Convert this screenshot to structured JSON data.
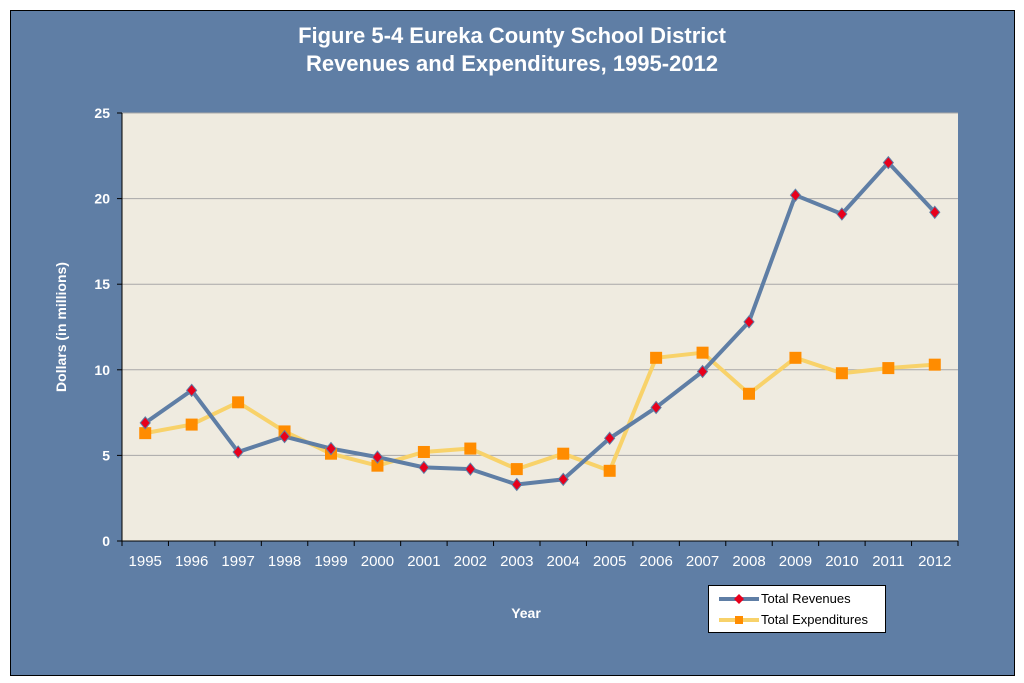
{
  "colors": {
    "background": "#5f7ea5",
    "plot_background": "#efebe0",
    "revenues_line": "#5f7ea5",
    "revenues_marker": "#e8001c",
    "expenditures_line": "#f8d26a",
    "expenditures_marker": "#ff8c00"
  },
  "chart_data": {
    "type": "line",
    "title": "Figure 5-4 Eureka County School District\nRevenues and Expenditures, 1995-2012",
    "title_lines": [
      "Figure 5-4 Eureka County School District",
      "Revenues and Expenditures, 1995-2012"
    ],
    "xlabel": "Year",
    "ylabel": "Dollars (in millions)",
    "ylim": [
      0,
      25
    ],
    "yticks": [
      0,
      5,
      10,
      15,
      20,
      25
    ],
    "grid": true,
    "legend_position": "bottom-right",
    "categories": [
      "1995",
      "1996",
      "1997",
      "1998",
      "1999",
      "2000",
      "2001",
      "2002",
      "2003",
      "2004",
      "2005",
      "2006",
      "2007",
      "2008",
      "2009",
      "2010",
      "2011",
      "2012"
    ],
    "series": [
      {
        "name": "Total Revenues",
        "marker": "diamond",
        "values": [
          6.9,
          8.8,
          5.2,
          6.1,
          5.4,
          4.9,
          4.3,
          4.2,
          3.3,
          3.6,
          6.0,
          7.8,
          9.9,
          12.8,
          20.2,
          19.1,
          22.1,
          19.2
        ]
      },
      {
        "name": "Total Expenditures",
        "marker": "square",
        "values": [
          6.3,
          6.8,
          8.1,
          6.4,
          5.1,
          4.4,
          5.2,
          5.4,
          4.2,
          5.1,
          4.1,
          10.7,
          11.0,
          8.6,
          10.7,
          9.8,
          10.1,
          10.3
        ]
      }
    ]
  }
}
